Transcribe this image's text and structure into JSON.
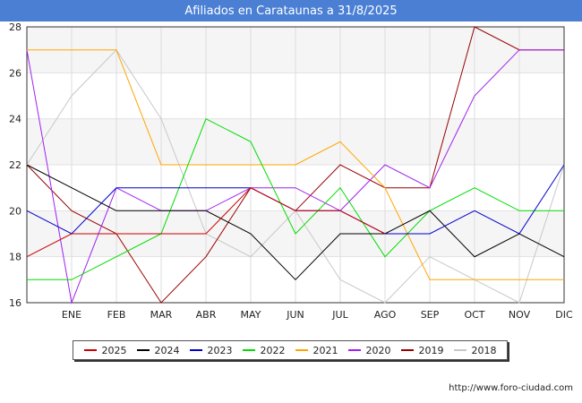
{
  "header": {
    "title": "Afiliados en Carataunas a 31/8/2025"
  },
  "source": {
    "text": "http://www.foro-ciudad.com"
  },
  "chart_data": {
    "type": "line",
    "title": "Afiliados en Carataunas a 31/8/2025",
    "x_tick_labels": [
      "ENE",
      "FEB",
      "MAR",
      "ABR",
      "MAY",
      "JUN",
      "JUL",
      "AGO",
      "SEP",
      "OCT",
      "NOV",
      "DIC"
    ],
    "ylim": [
      16,
      28
    ],
    "y_ticks": [
      16,
      18,
      20,
      22,
      24,
      26,
      28
    ],
    "grid": true,
    "legend_position": "bottom",
    "series": [
      {
        "name": "2025",
        "color": "#cc0000",
        "values": [
          18,
          19,
          19,
          19,
          19,
          21,
          20,
          20,
          19
        ]
      },
      {
        "name": "2024",
        "color": "#000000",
        "values": [
          22,
          21,
          20,
          20,
          20,
          19,
          17,
          19,
          19,
          20,
          18,
          19,
          18
        ]
      },
      {
        "name": "2023",
        "color": "#0000cc",
        "values": [
          20,
          19,
          21,
          21,
          21,
          21,
          20,
          20,
          19,
          19,
          20,
          19,
          22
        ]
      },
      {
        "name": "2022",
        "color": "#00dd00",
        "values": [
          17,
          17,
          18,
          19,
          24,
          23,
          19,
          21,
          18,
          20,
          21,
          20,
          20
        ]
      },
      {
        "name": "2021",
        "color": "#ffa500",
        "values": [
          27,
          27,
          27,
          22,
          22,
          22,
          22,
          23,
          21,
          17,
          17,
          17,
          17
        ]
      },
      {
        "name": "2020",
        "color": "#a020f0",
        "values": [
          27,
          16,
          21,
          20,
          20,
          21,
          21,
          20,
          22,
          21,
          25,
          27,
          27
        ]
      },
      {
        "name": "2019",
        "color": "#990000",
        "values": [
          22,
          20,
          19,
          16,
          18,
          21,
          20,
          22,
          21,
          21,
          28,
          27,
          27
        ]
      },
      {
        "name": "2018",
        "color": "#c8c8c8",
        "values": [
          22,
          25,
          27,
          24,
          19,
          18,
          20,
          17,
          16,
          18,
          17,
          16,
          22
        ]
      }
    ]
  }
}
